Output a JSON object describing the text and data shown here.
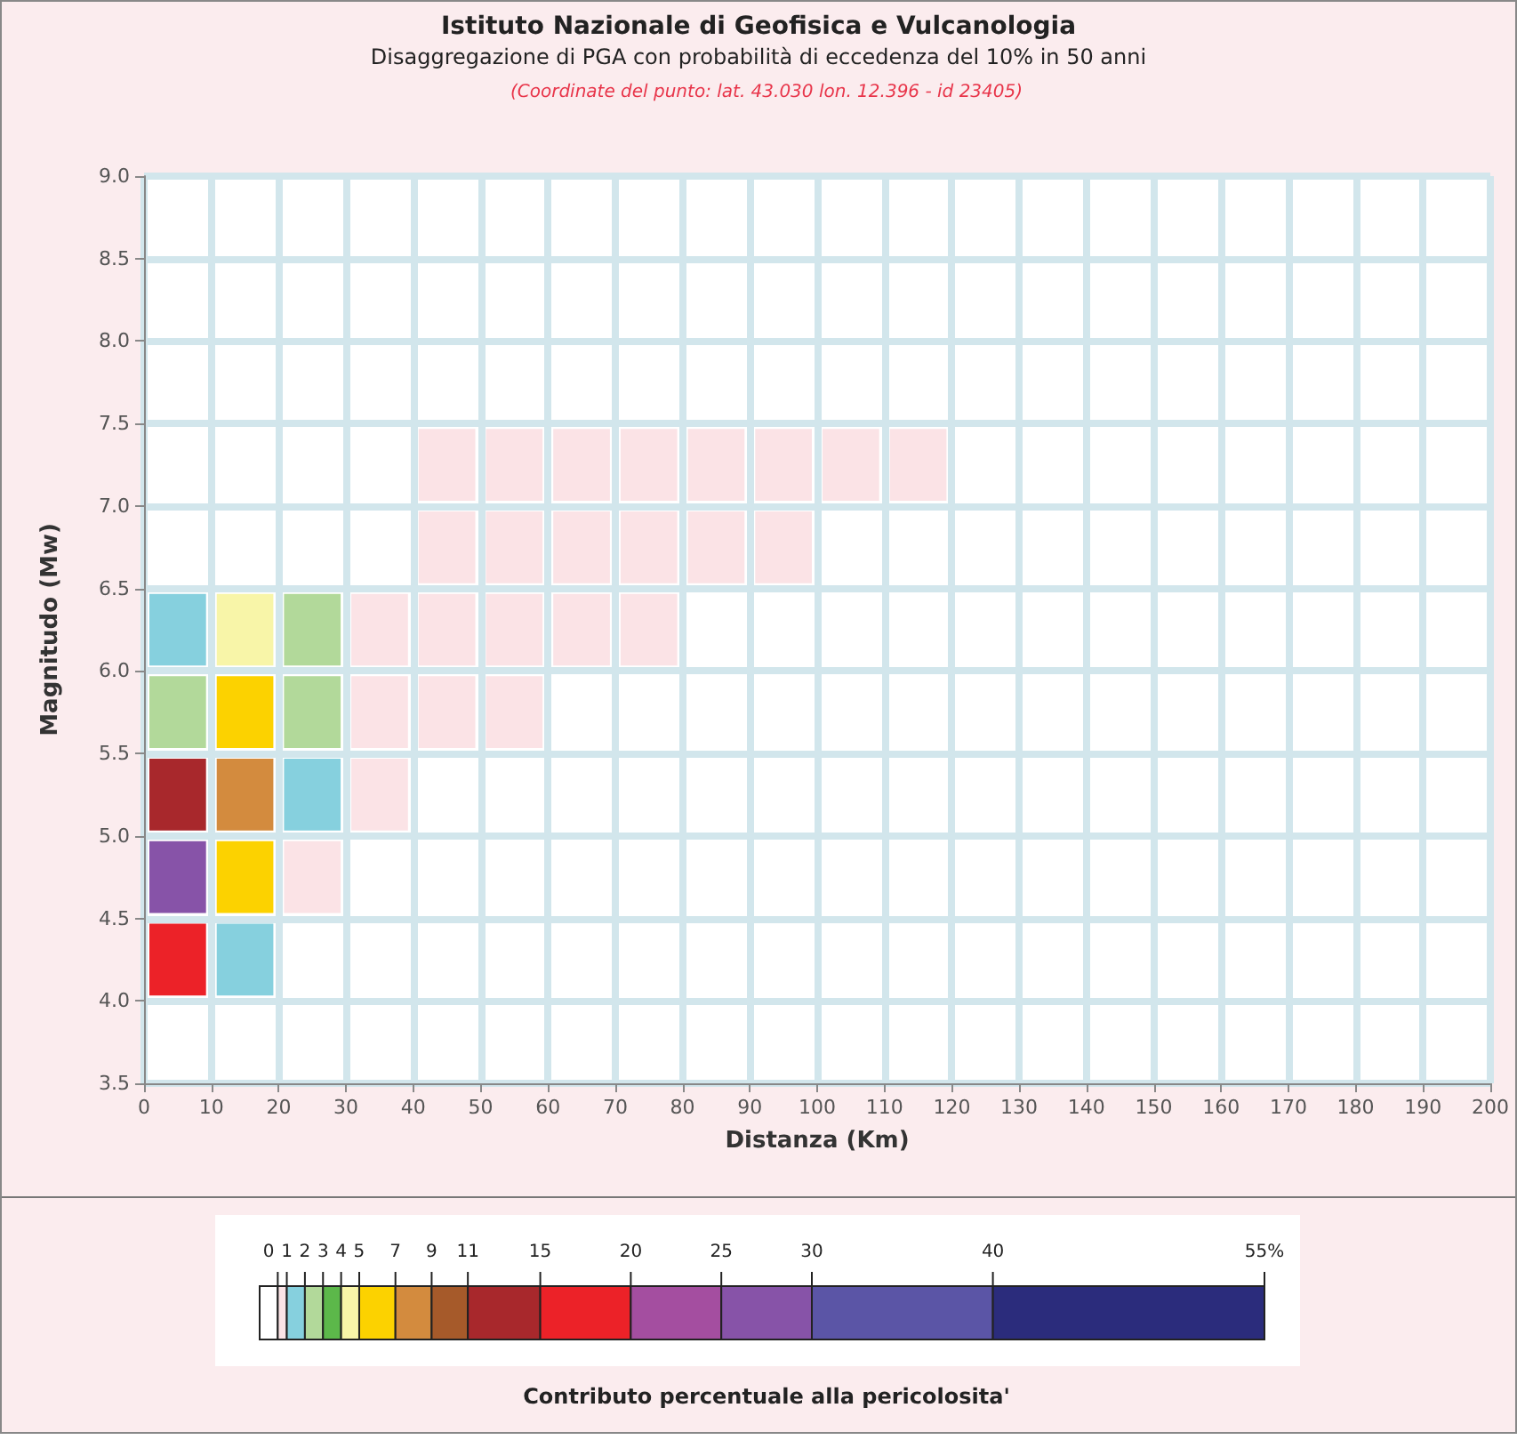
{
  "chart_data": {
    "type": "heatmap",
    "title": "Istituto Nazionale di Geofisica e Vulcanologia",
    "subtitle": "Disaggregazione di PGA con probabilità di eccedenza del 10% in 50 anni",
    "annotations": [
      "(Coordinate del punto: lat. 43.030 lon. 12.396 - id 23405)"
    ],
    "xlabel": "Distanza (Km)",
    "ylabel": "Magnitudo (Mw)",
    "clabel": "Contributo percentuale alla pericolosita'",
    "xlim": [
      0,
      200
    ],
    "xticks": [
      0,
      10,
      20,
      30,
      40,
      50,
      60,
      70,
      80,
      90,
      100,
      110,
      120,
      130,
      140,
      150,
      160,
      170,
      180,
      190,
      200
    ],
    "ylim": [
      3.5,
      9
    ],
    "yticks": [
      {
        "value": 3.5,
        "label": "3.5"
      },
      {
        "value": 4,
        "label": "4.0"
      },
      {
        "value": 4.5,
        "label": "4.5"
      },
      {
        "value": 5,
        "label": "5.0"
      },
      {
        "value": 5.5,
        "label": "5.5"
      },
      {
        "value": 6,
        "label": "6.0"
      },
      {
        "value": 6.5,
        "label": "6.5"
      },
      {
        "value": 7,
        "label": "7.0"
      },
      {
        "value": 7.5,
        "label": "7.5"
      },
      {
        "value": 8,
        "label": "8.0"
      },
      {
        "value": 8.5,
        "label": "8.5"
      },
      {
        "value": 9,
        "label": "9.0"
      }
    ],
    "clim": [
      -0.5,
      55
    ],
    "cticks": [
      0,
      1,
      2,
      3,
      4,
      5,
      7,
      9,
      11,
      15,
      20,
      25,
      30,
      40,
      {
        "value": 55,
        "label": "55%"
      }
    ],
    "grid": true,
    "cells": [
      [
        0,
        0,
        0,
        0,
        0,
        0,
        0,
        0,
        0,
        0,
        0,
        0,
        0,
        0,
        0,
        0,
        0,
        0,
        0,
        0
      ],
      [
        0,
        0,
        0,
        0,
        0,
        0,
        0,
        0,
        0,
        0,
        0,
        0,
        0,
        0,
        0,
        0,
        0,
        0,
        0,
        0
      ],
      [
        0,
        0,
        0,
        0,
        0,
        0,
        0,
        0,
        0,
        0,
        0,
        0,
        0,
        0,
        0,
        0,
        0,
        0,
        0,
        0
      ],
      [
        0,
        0,
        0,
        0,
        0.75,
        0.75,
        0.75,
        0.75,
        0.75,
        0.75,
        0.75,
        0.75,
        0,
        0,
        0,
        0,
        0,
        0,
        0,
        0
      ],
      [
        0,
        0,
        0,
        0,
        0.75,
        0.75,
        0.75,
        0.75,
        0.75,
        0.75,
        0,
        0,
        0,
        0,
        0,
        0,
        0,
        0,
        0,
        0
      ],
      [
        1.5,
        4.5,
        2.5,
        0.75,
        0.75,
        0.75,
        0.75,
        0.75,
        0,
        0,
        0,
        0,
        0,
        0,
        0,
        0,
        0,
        0,
        0,
        0
      ],
      [
        2.5,
        6,
        2.5,
        0.75,
        0.75,
        0.75,
        0,
        0,
        0,
        0,
        0,
        0,
        0,
        0,
        0,
        0,
        0,
        0,
        0,
        0
      ],
      [
        13,
        8,
        1.5,
        0.75,
        0,
        0,
        0,
        0,
        0,
        0,
        0,
        0,
        0,
        0,
        0,
        0,
        0,
        0,
        0,
        0
      ],
      [
        27.5,
        6,
        0.75,
        0,
        0,
        0,
        0,
        0,
        0,
        0,
        0,
        0,
        0,
        0,
        0,
        0,
        0,
        0,
        0,
        0
      ],
      [
        17.5,
        1.5,
        0,
        0,
        0,
        0,
        0,
        0,
        0,
        0,
        0,
        0,
        0,
        0,
        0,
        0,
        0,
        0,
        0,
        0
      ],
      [
        0,
        0,
        0,
        0,
        0,
        0,
        0,
        0,
        0,
        0,
        0,
        0,
        0,
        0,
        0,
        0,
        0,
        0,
        0,
        0
      ]
    ]
  }
}
